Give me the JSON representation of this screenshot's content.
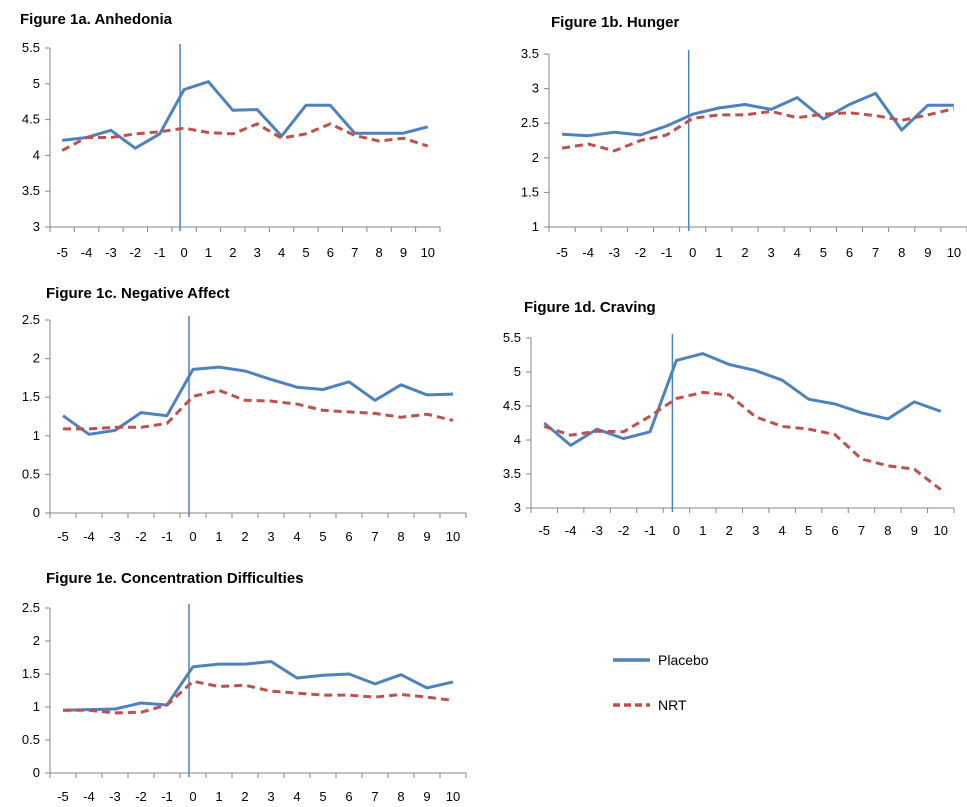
{
  "colors": {
    "placebo": "#4F81BD",
    "nrt": "#C0504D",
    "axis": "#868686",
    "marker": "#4F81BD"
  },
  "legend": {
    "placebo_label": "Placebo",
    "nrt_label": "NRT"
  },
  "chart_data": [
    {
      "type": "line",
      "title": "Figure 1a.    Anhedonia",
      "x": [
        -5,
        -4,
        -3,
        -2,
        -1,
        0,
        1,
        2,
        3,
        4,
        5,
        6,
        7,
        8,
        9,
        10
      ],
      "ylim": [
        3,
        5.5
      ],
      "yticks": [
        "3",
        "3.5",
        "4",
        "4.5",
        "5",
        "5.5"
      ],
      "series": [
        {
          "name": "Placebo",
          "values": [
            4.21,
            4.25,
            4.35,
            4.1,
            4.3,
            4.92,
            5.03,
            4.63,
            4.64,
            4.27,
            4.7,
            4.7,
            4.31,
            4.31,
            4.31,
            4.4
          ]
        },
        {
          "name": "NRT",
          "values": [
            4.07,
            4.25,
            4.25,
            4.3,
            4.33,
            4.38,
            4.32,
            4.3,
            4.44,
            4.24,
            4.3,
            4.44,
            4.28,
            4.2,
            4.24,
            4.13
          ]
        }
      ]
    },
    {
      "type": "line",
      "title": "Figure 1b.    Hunger",
      "x": [
        -5,
        -4,
        -3,
        -2,
        -1,
        0,
        1,
        2,
        3,
        4,
        5,
        6,
        7,
        8,
        9,
        10
      ],
      "ylim": [
        1,
        3.5
      ],
      "yticks": [
        "1",
        "1.5",
        "2",
        "2.5",
        "3",
        "3.5"
      ],
      "series": [
        {
          "name": "Placebo",
          "values": [
            2.34,
            2.32,
            2.37,
            2.33,
            2.46,
            2.63,
            2.72,
            2.77,
            2.7,
            2.87,
            2.56,
            2.77,
            2.93,
            2.4,
            2.76,
            2.76
          ]
        },
        {
          "name": "NRT",
          "values": [
            2.14,
            2.2,
            2.1,
            2.25,
            2.33,
            2.57,
            2.62,
            2.62,
            2.67,
            2.58,
            2.63,
            2.65,
            2.61,
            2.54,
            2.62,
            2.71
          ]
        }
      ]
    },
    {
      "type": "line",
      "title": "Figure 1c.    Negative Affect",
      "x": [
        -5,
        -4,
        -3,
        -2,
        -1,
        0,
        1,
        2,
        3,
        4,
        5,
        6,
        7,
        8,
        9,
        10
      ],
      "ylim": [
        0,
        2.5
      ],
      "yticks": [
        "0",
        "0.5",
        "1",
        "1.5",
        "2",
        "2.5"
      ],
      "series": [
        {
          "name": "Placebo",
          "values": [
            1.26,
            1.02,
            1.07,
            1.3,
            1.26,
            1.86,
            1.89,
            1.84,
            1.73,
            1.63,
            1.6,
            1.7,
            1.46,
            1.66,
            1.53,
            1.54
          ]
        },
        {
          "name": "NRT",
          "values": [
            1.09,
            1.09,
            1.11,
            1.11,
            1.16,
            1.51,
            1.59,
            1.46,
            1.45,
            1.41,
            1.33,
            1.31,
            1.29,
            1.24,
            1.28,
            1.2
          ]
        }
      ]
    },
    {
      "type": "line",
      "title": "Figure 1d.    Craving",
      "x": [
        -5,
        -4,
        -3,
        -2,
        -1,
        0,
        1,
        2,
        3,
        4,
        5,
        6,
        7,
        8,
        9,
        10
      ],
      "ylim": [
        3,
        5.5
      ],
      "yticks": [
        "3",
        "3.5",
        "4",
        "4.5",
        "5",
        "5.5"
      ],
      "series": [
        {
          "name": "Placebo",
          "values": [
            4.25,
            3.92,
            4.16,
            4.02,
            4.12,
            5.17,
            5.27,
            5.11,
            5.02,
            4.88,
            4.6,
            4.53,
            4.4,
            4.31,
            4.56,
            4.42
          ]
        },
        {
          "name": "NRT",
          "values": [
            4.2,
            4.07,
            4.13,
            4.12,
            4.35,
            4.61,
            4.7,
            4.66,
            4.34,
            4.2,
            4.16,
            4.08,
            3.72,
            3.62,
            3.57,
            3.27
          ]
        }
      ]
    },
    {
      "type": "line",
      "title": "Figure 1e.    Concentration Difficulties",
      "x": [
        -5,
        -4,
        -3,
        -2,
        -1,
        0,
        1,
        2,
        3,
        4,
        5,
        6,
        7,
        8,
        9,
        10
      ],
      "ylim": [
        0,
        2.5
      ],
      "yticks": [
        "0",
        "0.5",
        "1",
        "1.5",
        "2",
        "2.5"
      ],
      "series": [
        {
          "name": "Placebo",
          "values": [
            0.95,
            0.96,
            0.97,
            1.06,
            1.03,
            1.61,
            1.65,
            1.65,
            1.69,
            1.44,
            1.48,
            1.5,
            1.35,
            1.49,
            1.29,
            1.38
          ]
        },
        {
          "name": "NRT",
          "values": [
            0.95,
            0.95,
            0.91,
            0.92,
            1.03,
            1.39,
            1.31,
            1.33,
            1.24,
            1.21,
            1.18,
            1.18,
            1.15,
            1.19,
            1.15,
            1.1
          ]
        }
      ]
    }
  ]
}
